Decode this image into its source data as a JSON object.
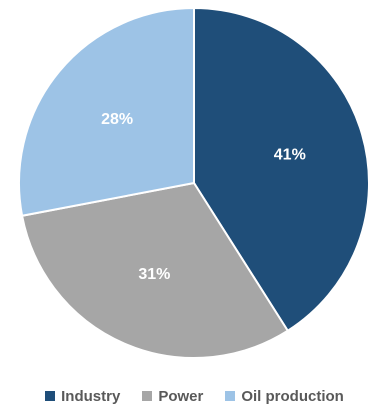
{
  "chart_data": {
    "type": "pie",
    "categories": [
      "Industry",
      "Power",
      "Oil production"
    ],
    "values": [
      41,
      31,
      28
    ],
    "data_labels": [
      "41%",
      "31%",
      "28%"
    ],
    "colors": [
      "#1f4e79",
      "#a6a6a6",
      "#9dc3e6"
    ],
    "label_color": "#ffffff",
    "start_angle_deg": 0,
    "direction": "clockwise",
    "legend_position": "bottom"
  },
  "legend": {
    "items": [
      {
        "label": "Industry",
        "color": "#1f4e79"
      },
      {
        "label": "Power",
        "color": "#a6a6a6"
      },
      {
        "label": "Oil production",
        "color": "#9dc3e6"
      }
    ]
  }
}
